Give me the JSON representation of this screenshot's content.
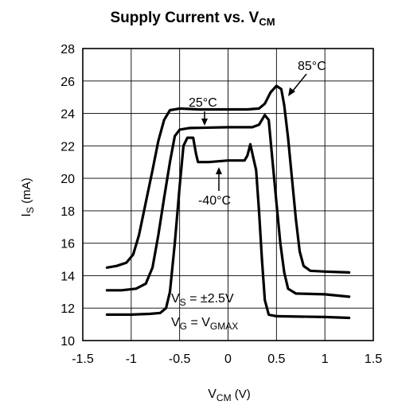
{
  "chart_data": {
    "type": "line",
    "title": {
      "main": "Supply Current vs. V",
      "sub": "CM"
    },
    "xlabel": {
      "main": "V",
      "sub": "CM",
      "rest": " (V)"
    },
    "ylabel": {
      "main": "I",
      "sub": "S",
      "rest": " (mA)"
    },
    "xlim": [
      -1.5,
      1.5
    ],
    "ylim": [
      10,
      28
    ],
    "xticks": [
      -1.5,
      -1,
      -0.5,
      0,
      0.5,
      1,
      1.5
    ],
    "xtick_labels": [
      "-1.5",
      "-1",
      "-0.5",
      "0",
      "0.5",
      "1",
      "1.5"
    ],
    "yticks": [
      10,
      12,
      14,
      16,
      18,
      20,
      22,
      24,
      26,
      28
    ],
    "ytick_labels": [
      "10",
      "12",
      "14",
      "16",
      "18",
      "20",
      "22",
      "24",
      "26",
      "28"
    ],
    "grid": true,
    "series": [
      {
        "name": "85°C",
        "points": [
          [
            -1.25,
            14.5
          ],
          [
            -1.15,
            14.6
          ],
          [
            -1.05,
            14.8
          ],
          [
            -0.98,
            15.3
          ],
          [
            -0.92,
            16.5
          ],
          [
            -0.85,
            18.5
          ],
          [
            -0.78,
            20.5
          ],
          [
            -0.72,
            22.3
          ],
          [
            -0.66,
            23.6
          ],
          [
            -0.6,
            24.2
          ],
          [
            -0.5,
            24.3
          ],
          [
            -0.3,
            24.25
          ],
          [
            0,
            24.25
          ],
          [
            0.2,
            24.25
          ],
          [
            0.32,
            24.3
          ],
          [
            0.38,
            24.6
          ],
          [
            0.44,
            25.3
          ],
          [
            0.5,
            25.7
          ],
          [
            0.55,
            25.5
          ],
          [
            0.58,
            24.5
          ],
          [
            0.62,
            22.5
          ],
          [
            0.66,
            20.0
          ],
          [
            0.7,
            17.5
          ],
          [
            0.74,
            15.5
          ],
          [
            0.78,
            14.6
          ],
          [
            0.85,
            14.3
          ],
          [
            1.0,
            14.25
          ],
          [
            1.25,
            14.2
          ]
        ]
      },
      {
        "name": "25°C",
        "points": [
          [
            -1.25,
            13.1
          ],
          [
            -1.1,
            13.1
          ],
          [
            -0.95,
            13.2
          ],
          [
            -0.85,
            13.5
          ],
          [
            -0.78,
            14.5
          ],
          [
            -0.72,
            16.5
          ],
          [
            -0.66,
            18.8
          ],
          [
            -0.6,
            21.0
          ],
          [
            -0.55,
            22.6
          ],
          [
            -0.5,
            23.0
          ],
          [
            -0.4,
            23.1
          ],
          [
            0,
            23.15
          ],
          [
            0.25,
            23.15
          ],
          [
            0.32,
            23.3
          ],
          [
            0.38,
            23.9
          ],
          [
            0.42,
            23.6
          ],
          [
            0.46,
            21.0
          ],
          [
            0.5,
            18.5
          ],
          [
            0.54,
            16.0
          ],
          [
            0.58,
            14.2
          ],
          [
            0.62,
            13.2
          ],
          [
            0.7,
            12.9
          ],
          [
            1.0,
            12.85
          ],
          [
            1.25,
            12.7
          ]
        ]
      },
      {
        "name": "-40°C",
        "points": [
          [
            -1.25,
            11.6
          ],
          [
            -1.0,
            11.6
          ],
          [
            -0.8,
            11.65
          ],
          [
            -0.7,
            11.7
          ],
          [
            -0.64,
            12.0
          ],
          [
            -0.6,
            13.0
          ],
          [
            -0.55,
            16.0
          ],
          [
            -0.5,
            19.5
          ],
          [
            -0.46,
            22.0
          ],
          [
            -0.42,
            22.5
          ],
          [
            -0.36,
            22.5
          ],
          [
            -0.33,
            21.5
          ],
          [
            -0.31,
            21.0
          ],
          [
            -0.2,
            21.0
          ],
          [
            0,
            21.1
          ],
          [
            0.17,
            21.1
          ],
          [
            0.2,
            21.4
          ],
          [
            0.23,
            22.1
          ],
          [
            0.26,
            21.3
          ],
          [
            0.29,
            20.5
          ],
          [
            0.32,
            18.0
          ],
          [
            0.35,
            15.0
          ],
          [
            0.38,
            12.5
          ],
          [
            0.42,
            11.6
          ],
          [
            0.5,
            11.5
          ],
          [
            1.0,
            11.45
          ],
          [
            1.25,
            11.4
          ]
        ]
      }
    ],
    "annotations": {
      "t85": "85°C",
      "t25": "25°C",
      "tm40": "-40°C",
      "vs_label": {
        "main": "V",
        "sub": "S",
        "rest": " = ±2.5V"
      },
      "vg_label": {
        "main": "V",
        "sub": "G",
        "mid": " = V",
        "sub2": "GMAX"
      }
    }
  }
}
